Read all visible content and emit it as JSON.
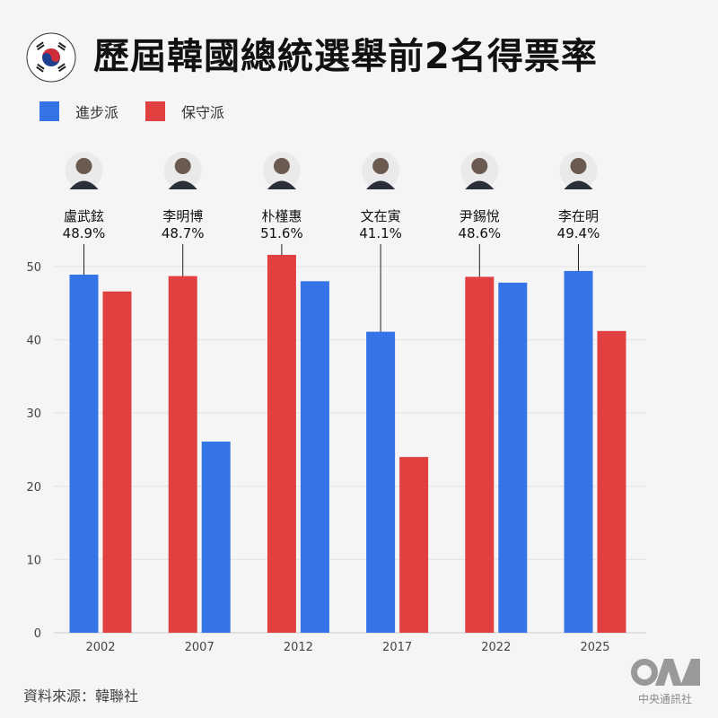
{
  "title": "歷屆韓國總統選舉前2名得票率",
  "source": "資料來源：韓聯社",
  "logo_text": "中央通訊社",
  "chart_data": {
    "type": "bar",
    "title": "歷屆韓國總統選舉前2名得票率",
    "categories": [
      "2002",
      "2007",
      "2012",
      "2017",
      "2022",
      "2025"
    ],
    "series": [
      {
        "name": "進步派",
        "color": "#3474E6",
        "values": [
          48.9,
          26.1,
          48.0,
          41.1,
          47.8,
          49.4
        ]
      },
      {
        "name": "保守派",
        "color": "#E14041",
        "values": [
          46.6,
          48.7,
          51.6,
          24.0,
          48.6,
          41.2
        ]
      }
    ],
    "winners": [
      {
        "name": "盧武鉉",
        "label": "48.9%",
        "series": "進步派"
      },
      {
        "name": "李明博",
        "label": "48.7%",
        "series": "保守派"
      },
      {
        "name": "朴槿惠",
        "label": "51.6%",
        "series": "保守派"
      },
      {
        "name": "文在寅",
        "label": "41.1%",
        "series": "進步派"
      },
      {
        "name": "尹錫悅",
        "label": "48.6%",
        "series": "保守派"
      },
      {
        "name": "李在明",
        "label": "49.4%",
        "series": "進步派"
      }
    ],
    "yticks": [
      "0",
      "10",
      "20",
      "30",
      "40",
      "50"
    ],
    "ylim": [
      0,
      55
    ],
    "grid": true,
    "legend": "top-left",
    "xlabel": "",
    "ylabel": ""
  }
}
